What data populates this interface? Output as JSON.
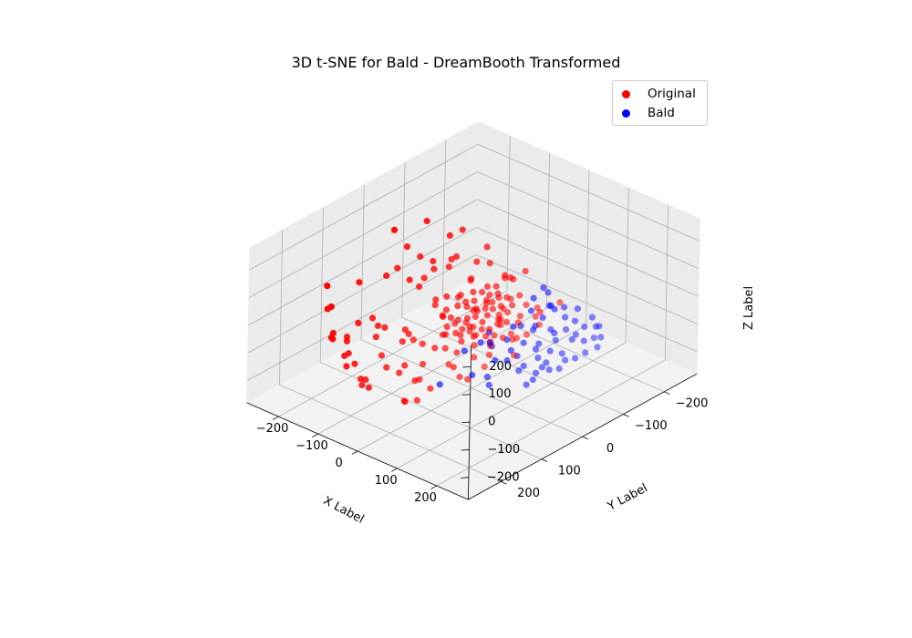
{
  "chart_data": {
    "type": "scatter",
    "title": "3D t-SNE for Bald - DreamBooth Transformed",
    "xlabel": "X Label",
    "ylabel": "Y Label",
    "zlabel": "Z Label",
    "xlim": [
      -280,
      280
    ],
    "ylim": [
      -280,
      280
    ],
    "zlim": [
      -280,
      280
    ],
    "x_ticks": [
      -200,
      -100,
      0,
      100,
      200
    ],
    "y_ticks": [
      -200,
      -100,
      0,
      100,
      200
    ],
    "z_ticks": [
      -200,
      -100,
      0,
      100,
      200
    ],
    "x_tick_labels": [
      "−200",
      "−100",
      "0",
      "100",
      "200"
    ],
    "y_tick_labels": [
      "−200",
      "−100",
      "0",
      "100",
      "200"
    ],
    "z_tick_labels": [
      "−200",
      "−100",
      "0",
      "100",
      "200"
    ],
    "grid": true,
    "legend_position": "top-right",
    "series": [
      {
        "name": "Original",
        "color": "#ff0000",
        "points": [
          [
            177,
            -177,
            48
          ],
          [
            130,
            -236,
            48
          ],
          [
            -111,
            -233,
            89
          ],
          [
            31,
            -221,
            -139
          ],
          [
            -108,
            -127,
            -209
          ],
          [
            47,
            -195,
            -178
          ],
          [
            121,
            -193,
            -132
          ],
          [
            -75,
            -245,
            18
          ],
          [
            -177,
            -173,
            -74
          ],
          [
            -90,
            -186,
            -149
          ],
          [
            -152,
            -121,
            -160
          ],
          [
            165,
            -154,
            -125
          ],
          [
            -97,
            -54,
            -238
          ],
          [
            -106,
            -107,
            -211
          ],
          [
            16,
            -160,
            -198
          ],
          [
            -49,
            -19,
            -254
          ],
          [
            -182,
            -28,
            -186
          ],
          [
            -21,
            -223,
            136
          ],
          [
            -52,
            -245,
            -41
          ],
          [
            -149,
            -213,
            18
          ],
          [
            -145,
            -204,
            -59
          ],
          [
            70,
            -217,
            -123
          ],
          [
            174,
            -103,
            -169
          ],
          [
            -118,
            -223,
            -56
          ],
          [
            -190,
            -153,
            -77
          ],
          [
            53,
            -116,
            -227
          ],
          [
            -102,
            1,
            -243
          ],
          [
            -160,
            -169,
            -119
          ],
          [
            39,
            -248,
            -20
          ],
          [
            -16,
            -142,
            -221
          ],
          [
            153,
            -140,
            -155
          ],
          [
            -133,
            -125,
            -187
          ],
          [
            163,
            -186,
            -86
          ],
          [
            143,
            -22,
            -226
          ],
          [
            -72,
            -234,
            -93
          ],
          [
            -102,
            -239,
            -36
          ],
          [
            -128,
            -130,
            -183
          ],
          [
            -76,
            -108,
            -217
          ],
          [
            -205,
            -109,
            -120
          ],
          [
            -94,
            -220,
            -95
          ],
          [
            -139,
            -204,
            -81
          ],
          [
            136,
            -228,
            -25
          ],
          [
            -78,
            -216,
            -111
          ],
          [
            119,
            -16,
            -237
          ],
          [
            -117,
            -65,
            -224
          ],
          [
            -115,
            -217,
            -78
          ],
          [
            115,
            -199,
            -125
          ],
          [
            90,
            -124,
            -209
          ],
          [
            -200,
            -125,
            -112
          ],
          [
            -46,
            -86,
            -242
          ],
          [
            -172,
            -111,
            -161
          ],
          [
            -16,
            -63,
            -256
          ],
          [
            -190,
            -25,
            -175
          ],
          [
            -96,
            -90,
            -222
          ],
          [
            -173,
            -9,
            -196
          ],
          [
            -153,
            -200,
            -53
          ],
          [
            200,
            -113,
            -109
          ],
          [
            71,
            -71,
            -239
          ],
          [
            64,
            -67,
            -238
          ],
          [
            -26,
            -246,
            -48
          ],
          [
            76,
            -151,
            -194
          ],
          [
            -198,
            -123,
            -119
          ],
          [
            -204,
            -115,
            -117
          ],
          [
            -170,
            -203,
            28
          ],
          [
            -8,
            -178,
            -186
          ],
          [
            -135,
            -27,
            -225
          ],
          [
            201,
            -151,
            -28
          ],
          [
            31,
            -207,
            -158
          ],
          [
            -147,
            -80,
            -200
          ],
          [
            -157,
            -167,
            -122
          ],
          [
            -74,
            -140,
            -205
          ],
          [
            -83,
            -161,
            -185
          ],
          [
            194,
            -62,
            -159
          ],
          [
            144,
            -165,
            -140
          ],
          [
            161,
            -104,
            -183
          ],
          [
            -37,
            -106,
            -232
          ],
          [
            -9,
            -170,
            -197
          ],
          [
            -196,
            -38,
            -172
          ],
          [
            -158,
            -47,
            -200
          ],
          [
            -130,
            -32,
            -229
          ],
          [
            151,
            -16,
            -213
          ],
          [
            204,
            -69,
            -146
          ],
          [
            -193,
            -80,
            -151
          ],
          [
            -222,
            -96,
            -97
          ],
          [
            -190,
            -60,
            -170
          ],
          [
            -3,
            -14,
            -259
          ],
          [
            21,
            -200,
            -168
          ],
          [
            -7,
            -156,
            -208
          ],
          [
            -26,
            -121,
            -231
          ],
          [
            -150,
            -87,
            -191
          ],
          [
            -163,
            -90,
            -181
          ],
          [
            -169,
            -53,
            -189
          ],
          [
            80,
            -102,
            -223
          ],
          [
            -213,
            1,
            -142
          ],
          [
            -192,
            -163,
            -27
          ],
          [
            -12,
            -71,
            -248
          ],
          [
            -77,
            -74,
            -233
          ],
          [
            -145,
            -12,
            -211
          ],
          [
            -76,
            -35,
            -243
          ],
          [
            -138,
            -71,
            -208
          ],
          [
            -173,
            -78,
            -169
          ],
          [
            177,
            -171,
            -44
          ],
          [
            69,
            -34,
            -246
          ],
          [
            23,
            -101,
            -237
          ],
          [
            -102,
            -59,
            -232
          ],
          [
            3,
            -28,
            -254
          ],
          [
            -180,
            -99,
            -159
          ],
          [
            -133,
            -167,
            -155
          ],
          [
            -136,
            -76,
            -206
          ],
          [
            -91,
            -148,
            -191
          ],
          [
            -89,
            -88,
            -220
          ],
          [
            -107,
            -176,
            -145
          ],
          [
            -181,
            -90,
            -160
          ],
          [
            -111,
            -127,
            -196
          ],
          [
            -87,
            -115,
            -209
          ],
          [
            -140,
            -140,
            -165
          ],
          [
            -166,
            -128,
            -157
          ],
          [
            -161,
            -77,
            -184
          ],
          [
            -121,
            -99,
            -201
          ],
          [
            -181,
            -127,
            -138
          ],
          [
            -149,
            -102,
            -178
          ],
          [
            -55,
            -52,
            -245
          ],
          [
            -135,
            -41,
            -218
          ],
          [
            -123,
            -141,
            -173
          ],
          [
            -141,
            -79,
            -195
          ],
          [
            -119,
            -45,
            -222
          ],
          [
            -55,
            -131,
            -213
          ],
          [
            -149,
            -118,
            -167
          ],
          [
            -163,
            -96,
            -175
          ],
          [
            -120,
            -116,
            -191
          ],
          [
            -68,
            -97,
            -226
          ],
          [
            -104,
            -73,
            -222
          ],
          [
            -157,
            -138,
            -146
          ],
          [
            -129,
            -150,
            -166
          ],
          [
            -174,
            -115,
            -151
          ],
          [
            -86,
            -133,
            -199
          ],
          [
            -146,
            -64,
            -199
          ],
          [
            -84,
            -181,
            -160
          ],
          [
            -113,
            -154,
            -170
          ],
          [
            -101,
            -111,
            -208
          ],
          [
            -147,
            -150,
            -145
          ],
          [
            -118,
            -78,
            -211
          ],
          [
            -171,
            -139,
            -138
          ],
          [
            -74,
            -118,
            -214
          ],
          [
            -135,
            -101,
            -189
          ],
          [
            -82,
            -159,
            -187
          ],
          [
            -97,
            -136,
            -197
          ],
          [
            -110,
            -89,
            -212
          ],
          [
            -124,
            -164,
            -154
          ],
          [
            -142,
            -114,
            -178
          ],
          [
            -158,
            -113,
            -168
          ],
          [
            -60,
            -129,
            -215
          ],
          [
            -95,
            -164,
            -176
          ],
          [
            -132,
            -127,
            -179
          ],
          [
            -93,
            -102,
            -214
          ]
        ]
      },
      {
        "name": "Bald",
        "color": "#0000ff",
        "points": [
          [
            -212,
            47,
            -135
          ],
          [
            -142,
            169,
            -141
          ],
          [
            -95,
            -48,
            -235
          ],
          [
            46,
            -34,
            -250
          ],
          [
            -203,
            93,
            -130
          ],
          [
            -99,
            -57,
            -232
          ],
          [
            -185,
            129,
            -125
          ],
          [
            -75,
            84,
            -233
          ],
          [
            -18,
            -18,
            -258
          ],
          [
            -220,
            -48,
            -125
          ],
          [
            -170,
            86,
            -170
          ],
          [
            -163,
            156,
            -130
          ],
          [
            -128,
            29,
            -224
          ],
          [
            -159,
            118,
            -164
          ],
          [
            -204,
            -16,
            -157
          ],
          [
            -186,
            91,
            -152
          ],
          [
            -91,
            83,
            -226
          ],
          [
            -118,
            138,
            -181
          ],
          [
            -29,
            9,
            -257
          ],
          [
            -69,
            47,
            -243
          ],
          [
            -139,
            25,
            -216
          ],
          [
            -210,
            15,
            -148
          ],
          [
            -205,
            -13,
            -156
          ],
          [
            -87,
            105,
            -218
          ],
          [
            -88,
            -69,
            -229
          ],
          [
            -147,
            -48,
            -207
          ],
          [
            -195,
            58,
            -159
          ],
          [
            -184,
            -41,
            -175
          ],
          [
            -106,
            -11,
            -236
          ],
          [
            -90,
            127,
            -203
          ],
          [
            -101,
            10,
            -239
          ],
          [
            -203,
            -2,
            -160
          ],
          [
            -10,
            33,
            -256
          ],
          [
            -160,
            87,
            -179
          ],
          [
            -55,
            97,
            -233
          ],
          [
            -202,
            -54,
            -152
          ],
          [
            -120,
            -36,
            -224
          ],
          [
            -218,
            -34,
            -132
          ],
          [
            -166,
            -12,
            -197
          ],
          [
            -72,
            -16,
            -248
          ],
          [
            -167,
            35,
            -194
          ],
          [
            -36,
            100,
            -234
          ],
          [
            -110,
            53,
            -226
          ],
          [
            -176,
            55,
            -176
          ],
          [
            -130,
            -4,
            -224
          ],
          [
            -197,
            31,
            -164
          ],
          [
            -188,
            118,
            -136
          ],
          [
            -113,
            -74,
            -215
          ],
          [
            -170,
            23,
            -191
          ],
          [
            -129,
            94,
            -200
          ],
          [
            -82,
            46,
            -237
          ],
          [
            -115,
            116,
            -199
          ],
          [
            -152,
            54,
            -196
          ],
          [
            -134,
            147,
            -168
          ],
          [
            -153,
            -35,
            -200
          ],
          [
            -56,
            -77,
            -238
          ],
          [
            -168,
            134,
            -150
          ],
          [
            -158,
            -9,
            -203
          ],
          [
            -131,
            62,
            -213
          ],
          [
            -83,
            3,
            -245
          ],
          [
            -103,
            81,
            -220
          ],
          [
            -183,
            -11,
            -180
          ]
        ]
      }
    ]
  }
}
